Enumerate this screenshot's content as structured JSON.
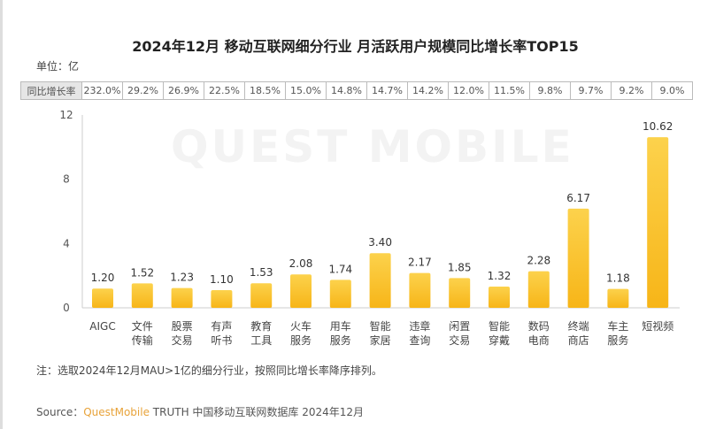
{
  "title": "2024年12月 移动互联网细分行业 月活跃用户规模同比增长率TOP15",
  "unit_label": "单位：亿",
  "growth_table": {
    "header": "同比增长率",
    "values": [
      "232.0%",
      "29.2%",
      "26.9%",
      "22.5%",
      "18.5%",
      "15.0%",
      "14.8%",
      "14.7%",
      "14.2%",
      "12.0%",
      "11.5%",
      "9.8%",
      "9.7%",
      "9.2%",
      "9.0%"
    ]
  },
  "watermark": "QUEST MOBILE",
  "chart_data": {
    "type": "bar",
    "categories": [
      [
        "AIGC"
      ],
      [
        "文件",
        "传输"
      ],
      [
        "股票",
        "交易"
      ],
      [
        "有声",
        "听书"
      ],
      [
        "教育",
        "工具"
      ],
      [
        "火车",
        "服务"
      ],
      [
        "用车",
        "服务"
      ],
      [
        "智能",
        "家居"
      ],
      [
        "违章",
        "查询"
      ],
      [
        "闲置",
        "交易"
      ],
      [
        "智能",
        "穿戴"
      ],
      [
        "数码",
        "电商"
      ],
      [
        "终端",
        "商店"
      ],
      [
        "车主",
        "服务"
      ],
      [
        "短视频"
      ]
    ],
    "values": [
      1.2,
      1.52,
      1.23,
      1.1,
      1.53,
      2.08,
      1.74,
      3.4,
      2.17,
      1.85,
      1.32,
      2.28,
      6.17,
      1.18,
      10.62
    ],
    "data_labels": [
      "1.20",
      "1.52",
      "1.23",
      "1.10",
      "1.53",
      "2.08",
      "1.74",
      "3.40",
      "2.17",
      "1.85",
      "1.32",
      "2.28",
      "6.17",
      "1.18",
      "10.62"
    ],
    "yticks": [
      "0",
      "4",
      "8",
      "12"
    ],
    "ylim": [
      0,
      12
    ],
    "grid": false,
    "bar_color": "#f7b518"
  },
  "note": "注：选取2024年12月MAU>1亿的细分行业，按照同比增长率降序排列。",
  "source": {
    "prefix": "Source：",
    "brand": "QuestMobile",
    "rest": " TRUTH 中国移动互联网数据库 2024年12月"
  }
}
